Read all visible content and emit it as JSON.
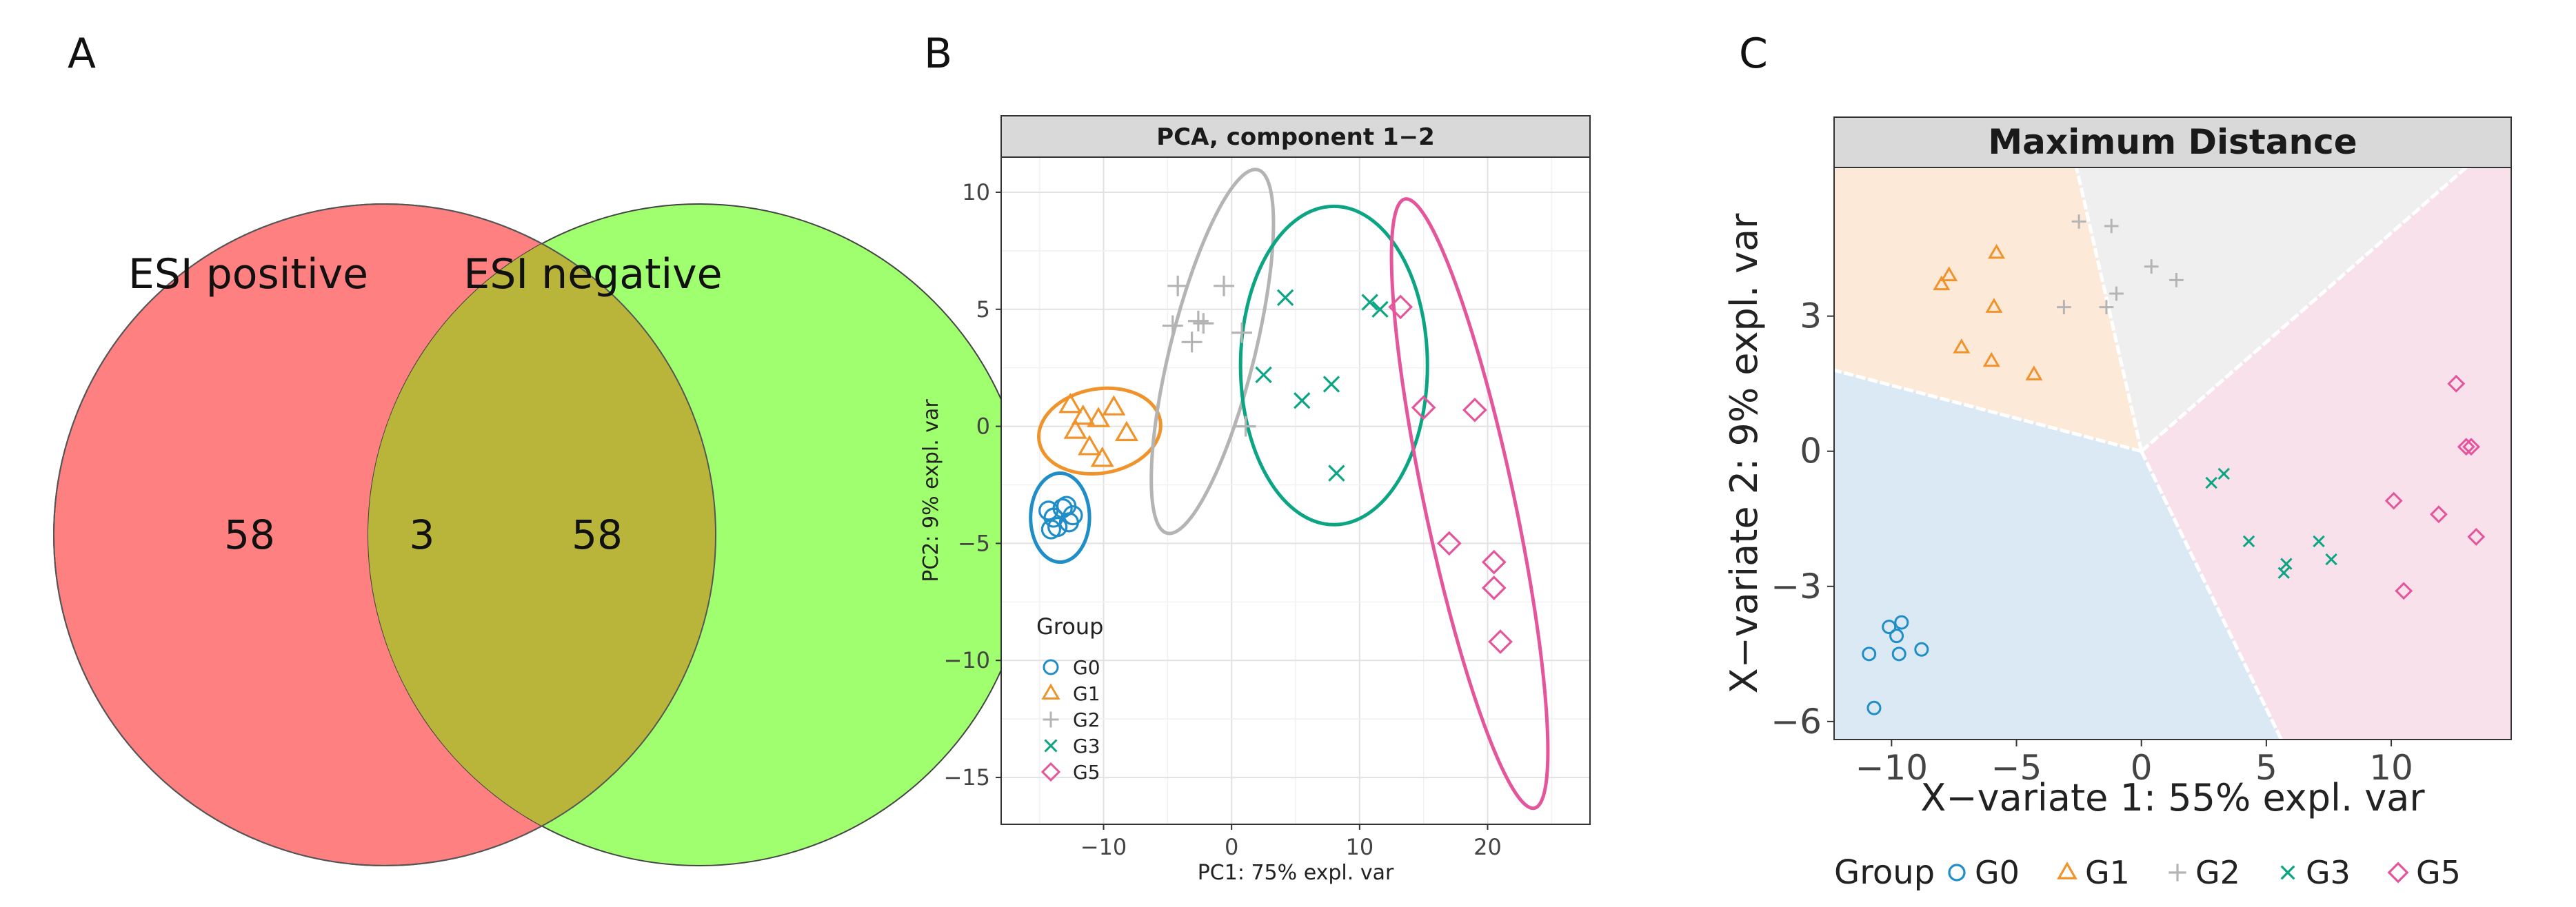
{
  "panels": {
    "a": {
      "label": "A",
      "venn": {
        "left_title": "ESI positive",
        "right_title": "ESI negative",
        "left_only": "58",
        "overlap": "3",
        "right_only": "58",
        "colors": {
          "left": "#ff8080",
          "right": "#a0ff6e",
          "overlap": "#b9b43a"
        }
      }
    },
    "b": {
      "label": "B"
    },
    "c": {
      "label": "C"
    }
  },
  "chart_data": [
    {
      "id": "venn",
      "type": "venn",
      "sets": [
        {
          "name": "ESI positive",
          "only": 58
        },
        {
          "name": "ESI negative",
          "only": 58
        }
      ],
      "intersection": 3
    },
    {
      "id": "pca",
      "type": "scatter",
      "title": "PCA, component 1−2",
      "xlabel": "PC1: 75% expl. var",
      "ylabel": "PC2: 9% expl. var",
      "xlim": [
        -18,
        28
      ],
      "ylim": [
        -17,
        11.5
      ],
      "xticks": [
        -10,
        0,
        10,
        20
      ],
      "yticks": [
        10,
        5,
        0,
        -5,
        -10,
        -15
      ],
      "grid": true,
      "legend": {
        "title": "Group",
        "position": "bottom-left"
      },
      "series": [
        {
          "name": "G0",
          "marker": "circle",
          "color": "#1f8dc8",
          "points": [
            [
              -14.3,
              -3.6
            ],
            [
              -13.9,
              -3.9
            ],
            [
              -13.2,
              -3.5
            ],
            [
              -13.6,
              -4.3
            ],
            [
              -12.7,
              -4.1
            ],
            [
              -12.9,
              -3.4
            ],
            [
              -14.1,
              -4.4
            ],
            [
              -12.4,
              -3.8
            ]
          ],
          "ellipse": {
            "cx": -13.4,
            "cy": -3.9,
            "rx": 2.3,
            "ry": 1.9,
            "angle": 0
          }
        },
        {
          "name": "G1",
          "marker": "triangle",
          "color": "#f0932b",
          "points": [
            [
              -12.6,
              0.9
            ],
            [
              -11.6,
              0.4
            ],
            [
              -10.4,
              0.3
            ],
            [
              -9.2,
              0.8
            ],
            [
              -12.2,
              -0.2
            ],
            [
              -11.1,
              -0.9
            ],
            [
              -8.2,
              -0.3
            ],
            [
              -10.1,
              -1.4
            ]
          ],
          "ellipse": {
            "cx": -10.3,
            "cy": -0.2,
            "rx": 4.8,
            "ry": 1.8,
            "angle": -10
          }
        },
        {
          "name": "G2",
          "marker": "plus",
          "color": "#b4b4b4",
          "points": [
            [
              -4.2,
              6.0
            ],
            [
              -0.6,
              6.0
            ],
            [
              -4.6,
              4.3
            ],
            [
              -2.6,
              4.5
            ],
            [
              -3.1,
              3.6
            ],
            [
              -2.2,
              4.4
            ],
            [
              0.8,
              4.0
            ],
            [
              1.1,
              0.0
            ]
          ],
          "ellipse": {
            "cx": -1.5,
            "cy": 3.2,
            "rx": 3.3,
            "ry": 8.0,
            "angle": 14
          }
        },
        {
          "name": "G3",
          "marker": "x",
          "color": "#0ba583",
          "points": [
            [
              4.2,
              5.5
            ],
            [
              10.8,
              5.3
            ],
            [
              11.6,
              5.0
            ],
            [
              2.5,
              2.2
            ],
            [
              5.5,
              1.1
            ],
            [
              7.8,
              1.8
            ],
            [
              8.2,
              -2.0
            ]
          ],
          "ellipse": {
            "cx": 8.0,
            "cy": 2.6,
            "rx": 7.3,
            "ry": 6.8,
            "angle": 0
          }
        },
        {
          "name": "G5",
          "marker": "diamond",
          "color": "#e5559c",
          "points": [
            [
              13.2,
              5.1
            ],
            [
              15.0,
              0.8
            ],
            [
              19.0,
              0.7
            ],
            [
              17.0,
              -5.0
            ],
            [
              20.5,
              -5.8
            ],
            [
              20.5,
              -6.9
            ],
            [
              21.0,
              -9.2
            ]
          ],
          "ellipse": {
            "cx": 18.6,
            "cy": -3.3,
            "rx": 3.5,
            "ry": 13.3,
            "angle": -12
          }
        }
      ]
    },
    {
      "id": "plsda",
      "type": "scatter",
      "title": "Maximum Distance",
      "xlabel": "X−variate 1: 55% expl. var",
      "ylabel": "X−variate 2: 9% expl. var",
      "xlim": [
        -12.3,
        14.8
      ],
      "ylim": [
        -6.4,
        6.3
      ],
      "xticks": [
        -10,
        -5,
        0,
        5,
        10
      ],
      "yticks": [
        3,
        0,
        -3,
        -6
      ],
      "grid": false,
      "legend": {
        "title": "Group",
        "position": "bottom"
      },
      "regions": [
        {
          "group": "G0",
          "color": "#dbe9f5"
        },
        {
          "group": "G1",
          "color": "#fde9d8"
        },
        {
          "group": "G2",
          "color": "#efefef"
        },
        {
          "group": "G5",
          "color": "#f9e1ec"
        }
      ],
      "series": [
        {
          "name": "G0",
          "marker": "circle",
          "color": "#1f8dc8",
          "points": [
            [
              -10.7,
              -5.7
            ],
            [
              -10.9,
              -4.5
            ],
            [
              -10.1,
              -3.9
            ],
            [
              -9.6,
              -3.8
            ],
            [
              -9.8,
              -4.1
            ],
            [
              -9.7,
              -4.5
            ],
            [
              -8.8,
              -4.4
            ]
          ]
        },
        {
          "name": "G1",
          "marker": "triangle",
          "color": "#f0932b",
          "points": [
            [
              -8.0,
              3.7
            ],
            [
              -7.7,
              3.9
            ],
            [
              -5.8,
              4.4
            ],
            [
              -5.9,
              3.2
            ],
            [
              -7.2,
              2.3
            ],
            [
              -6.0,
              2.0
            ],
            [
              -4.3,
              1.7
            ]
          ]
        },
        {
          "name": "G2",
          "marker": "plus",
          "color": "#b4b4b4",
          "points": [
            [
              -2.5,
              5.1
            ],
            [
              -1.2,
              5.0
            ],
            [
              -3.1,
              3.2
            ],
            [
              -1.4,
              3.2
            ],
            [
              -1.0,
              3.5
            ],
            [
              0.4,
              4.1
            ],
            [
              1.4,
              3.8
            ]
          ]
        },
        {
          "name": "G3",
          "marker": "x",
          "color": "#0ba583",
          "points": [
            [
              2.8,
              -0.7
            ],
            [
              3.3,
              -0.5
            ],
            [
              4.3,
              -2.0
            ],
            [
              5.8,
              -2.5
            ],
            [
              5.7,
              -2.7
            ],
            [
              7.1,
              -2.0
            ],
            [
              7.6,
              -2.4
            ]
          ]
        },
        {
          "name": "G5",
          "marker": "diamond",
          "color": "#e5559c",
          "points": [
            [
              12.6,
              1.5
            ],
            [
              13.0,
              0.1
            ],
            [
              13.2,
              0.1
            ],
            [
              10.1,
              -1.1
            ],
            [
              11.9,
              -1.4
            ],
            [
              13.4,
              -1.9
            ],
            [
              10.5,
              -3.1
            ]
          ]
        }
      ]
    }
  ]
}
